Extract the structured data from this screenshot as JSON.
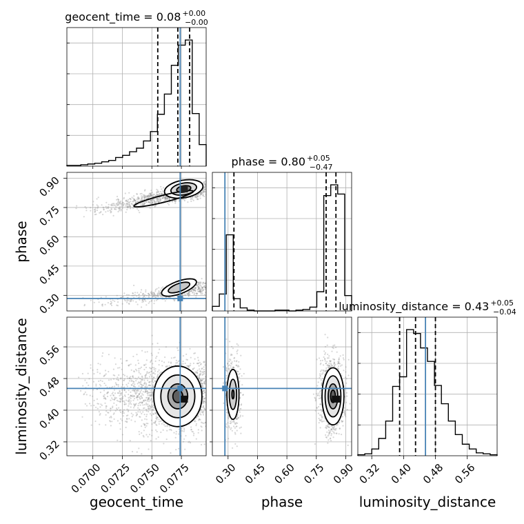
{
  "chart_data": {
    "type": "corner",
    "parameters": [
      {
        "name": "geocent_time",
        "range": [
          0.0678,
          0.0796
        ],
        "ticks": [
          0.07,
          0.0725,
          0.075,
          0.0775
        ],
        "tick_labels": [
          "0.0700",
          "0.0725",
          "0.0750",
          "0.0775"
        ],
        "truth": 0.0774,
        "quantiles": [
          0.0755,
          0.0772,
          0.0782
        ]
      },
      {
        "name": "phase",
        "range": [
          0.22,
          0.93
        ],
        "ticks": [
          0.3,
          0.45,
          0.6,
          0.75,
          0.9
        ],
        "tick_labels": [
          "0.30",
          "0.45",
          "0.60",
          "0.75",
          "0.90"
        ],
        "truth": 0.284,
        "quantiles": [
          0.33,
          0.8,
          0.85
        ]
      },
      {
        "name": "luminosity_distance",
        "range": [
          0.285,
          0.635
        ],
        "ticks": [
          0.32,
          0.4,
          0.48,
          0.56
        ],
        "tick_labels": [
          "0.32",
          "0.40",
          "0.48",
          "0.56"
        ],
        "truth": 0.455,
        "quantiles": [
          0.39,
          0.43,
          0.48
        ]
      }
    ],
    "titles": [
      {
        "main": "geocent_time = 0.08",
        "sup": "+0.00",
        "sub": "−0.00"
      },
      {
        "main": "phase = 0.80",
        "sup": "+0.05",
        "sub": "−0.47"
      },
      {
        "main": "luminosity_distance = 0.43",
        "sup": "+0.05",
        "sub": "−0.04"
      }
    ],
    "histograms": [
      {
        "param": "geocent_time",
        "bins": 20,
        "counts": [
          1,
          1,
          2,
          3,
          4,
          6,
          8,
          12,
          15,
          20,
          25,
          35,
          48,
          72,
          100,
          140,
          168,
          175,
          73,
          30
        ]
      },
      {
        "param": "phase",
        "bins": 20,
        "counts": [
          6,
          22,
          99,
          16,
          4,
          1,
          0,
          0,
          0,
          1,
          1,
          0,
          1,
          2,
          5,
          25,
          150,
          164,
          152,
          20
        ]
      },
      {
        "param": "luminosity_distance",
        "bins": 20,
        "counts": [
          1,
          2,
          7,
          18,
          36,
          72,
          82,
          131,
          127,
          112,
          98,
          73,
          54,
          36,
          22,
          12,
          7,
          3,
          2,
          1
        ]
      }
    ],
    "grid": true
  },
  "colors": {
    "truth": "#4682b4",
    "hist": "#000000",
    "scatter": "#8c8c8c",
    "grid": "#b0b0b0"
  }
}
